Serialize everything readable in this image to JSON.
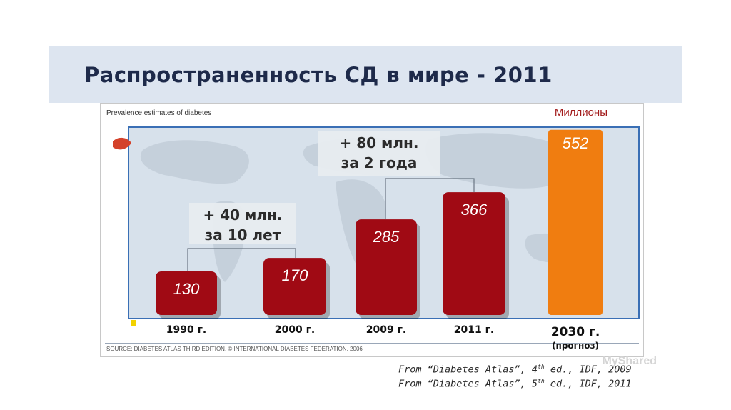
{
  "slide": {
    "title": "Распространенность СД в мире - 2011",
    "panel_heading": "Prevalence estimates of diabetes",
    "source": "SOURCE: DIABETES ATLAS THIRD EDITION, © INTERNATIONAL DIABETES FEDERATION, 2006",
    "citations": [
      {
        "pre": "From “Diabetes Atlas”, 4",
        "sup": "th",
        "post": " ed., IDF, 2009"
      },
      {
        "pre": "From “Diabetes Atlas”, 5",
        "sup": "th",
        "post": " ed., IDF, 2011"
      }
    ],
    "watermark": "MyShared"
  },
  "chart_data": {
    "type": "bar",
    "units_label": "Миллионы",
    "categories": [
      "1990 г.",
      "2000 г.",
      "2009 г.",
      "2011 г.",
      "2030 г."
    ],
    "forecast_note": "(прогноз)",
    "values": [
      130,
      170,
      285,
      366,
      552
    ],
    "value_labels": [
      "130",
      "170",
      "285",
      "366",
      "552"
    ],
    "forecast_index": 4,
    "colors": {
      "actual": "#a00a14",
      "forecast": "#f07d10",
      "background_map": "#d7e1eb",
      "frame": "#3a6fb5"
    },
    "ylim": [
      0,
      560
    ],
    "annotations": [
      {
        "lines": [
          "+ 40 млн.",
          "за 10 лет"
        ],
        "from": 0,
        "to": 1
      },
      {
        "lines": [
          "+ 80 млн.",
          "за 2 года"
        ],
        "from": 2,
        "to": 3
      }
    ]
  }
}
